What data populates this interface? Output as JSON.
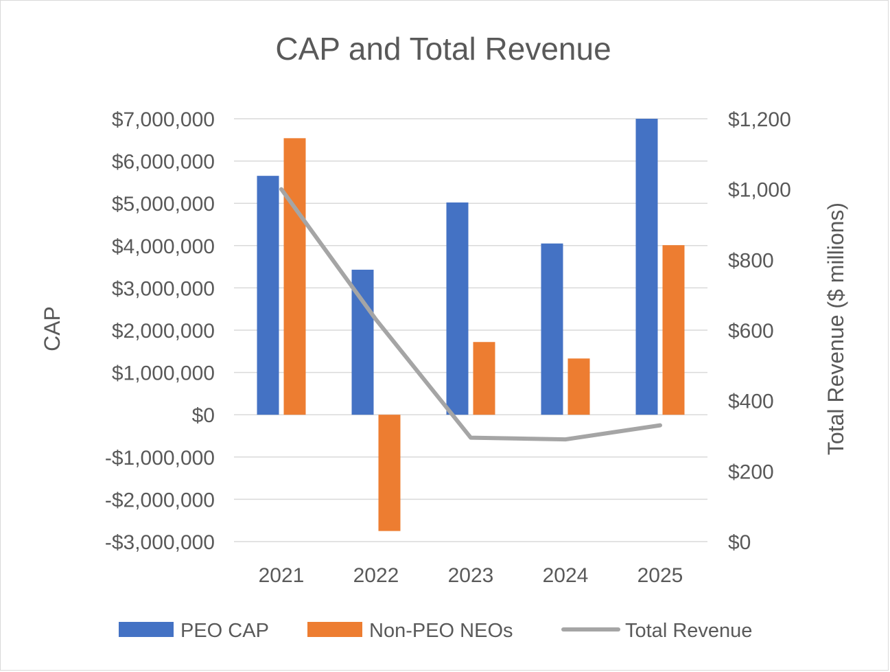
{
  "chart_data": {
    "type": "bar",
    "title": "CAP and Total Revenue",
    "categories": [
      "2021",
      "2022",
      "2023",
      "2024",
      "2025"
    ],
    "series": [
      {
        "name": "PEO CAP",
        "kind": "bar",
        "axis": "left",
        "color": "#4472C4",
        "values": [
          5650000,
          3430000,
          5020000,
          4050000,
          7000000
        ]
      },
      {
        "name": "Non-PEO NEOs",
        "kind": "bar",
        "axis": "left",
        "color": "#ED7D31",
        "values": [
          6540000,
          -2750000,
          1720000,
          1330000,
          4010000
        ]
      },
      {
        "name": "Total Revenue",
        "kind": "line",
        "axis": "right",
        "color": "#A5A5A5",
        "values": [
          1000,
          630,
          295,
          290,
          330
        ]
      }
    ],
    "ylabel": "CAP",
    "y2label": "Total Revenue ($ millions)",
    "ylim": [
      -3000000,
      7000000
    ],
    "y2lim": [
      0,
      1200
    ],
    "yticks": [
      {
        "value": 7000000,
        "label": "$7,000,000"
      },
      {
        "value": 6000000,
        "label": "$6,000,000"
      },
      {
        "value": 5000000,
        "label": "$5,000,000"
      },
      {
        "value": 4000000,
        "label": "$4,000,000"
      },
      {
        "value": 3000000,
        "label": "$3,000,000"
      },
      {
        "value": 2000000,
        "label": "$2,000,000"
      },
      {
        "value": 1000000,
        "label": "$1,000,000"
      },
      {
        "value": 0,
        "label": "$0"
      },
      {
        "value": -1000000,
        "label": "-$1,000,000"
      },
      {
        "value": -2000000,
        "label": "-$2,000,000"
      },
      {
        "value": -3000000,
        "label": "-$3,000,000"
      }
    ],
    "y2ticks": [
      {
        "value": 1200,
        "label": "$1,200"
      },
      {
        "value": 1000,
        "label": "$1,000"
      },
      {
        "value": 800,
        "label": "$800"
      },
      {
        "value": 600,
        "label": "$600"
      },
      {
        "value": 400,
        "label": "$400"
      },
      {
        "value": 200,
        "label": "$200"
      },
      {
        "value": 0,
        "label": "$0"
      }
    ],
    "grid": true,
    "legend_position": "bottom"
  }
}
